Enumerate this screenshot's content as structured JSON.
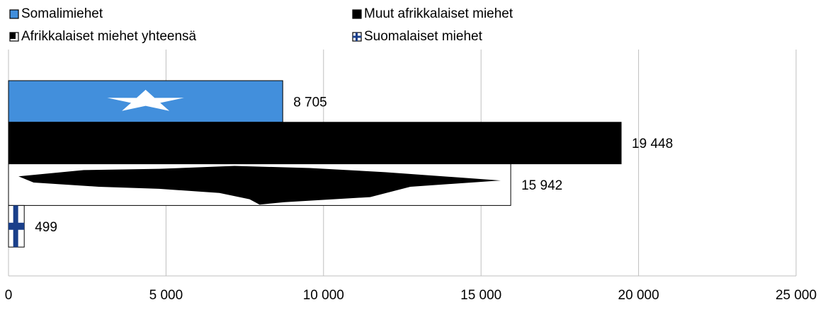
{
  "chart_data": {
    "type": "bar",
    "orientation": "horizontal",
    "categories": [
      null
    ],
    "series": [
      {
        "name": "Somalimiehet",
        "color": "#428fdc",
        "values": [
          8705
        ],
        "value_labels": [
          "8 705"
        ]
      },
      {
        "name": "Muut afrikkalaiset miehet",
        "color": "#000000",
        "values": [
          19448
        ],
        "value_labels": [
          "19 448"
        ]
      },
      {
        "name": "Afrikkalaiset miehet yhteensä",
        "color": "#ffffff",
        "values": [
          15942
        ],
        "value_labels": [
          "15 942"
        ]
      },
      {
        "name": "Suomalaiset miehet",
        "color": "#ffffff",
        "values": [
          499
        ],
        "value_labels": [
          "499"
        ]
      }
    ],
    "xlim": [
      0,
      25000
    ],
    "xticks": [
      0,
      {
        "value": 5000,
        "label": "5 000"
      },
      {
        "value": 10000,
        "label": "10 000"
      },
      {
        "value": 15000,
        "label": "15 000"
      },
      {
        "value": 20000,
        "label": "20 000"
      },
      {
        "value": 25000,
        "label": "25 000"
      }
    ],
    "grid": true,
    "legend": "top"
  }
}
